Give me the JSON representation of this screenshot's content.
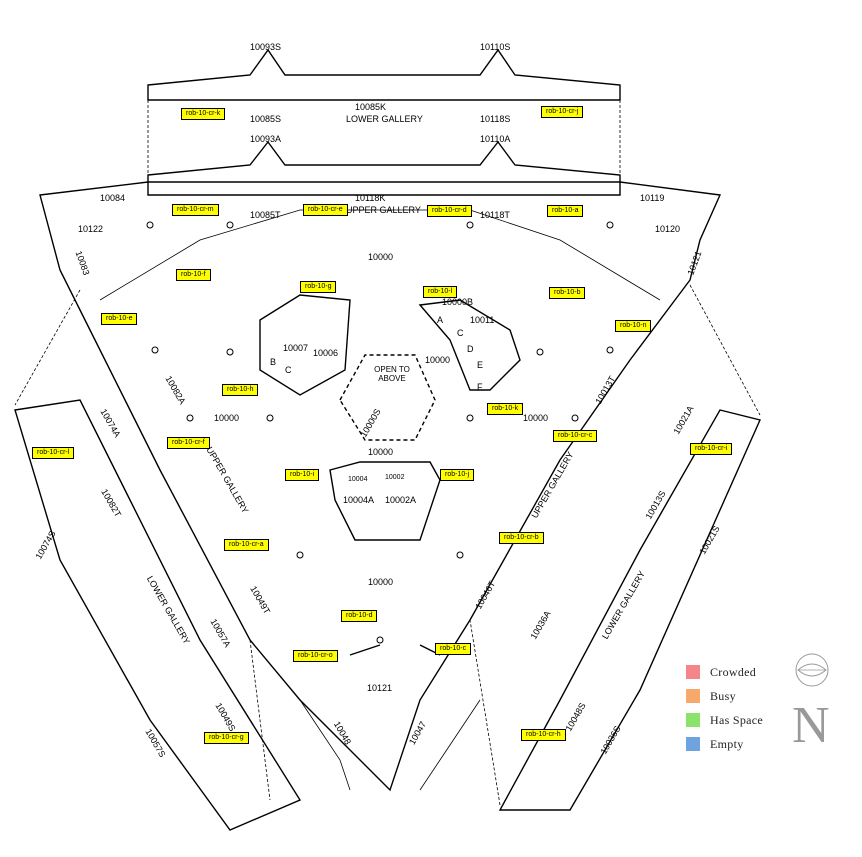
{
  "room_labels": {
    "cr_k": "rob-10-cr-k",
    "cr_j": "rob-10-cr-j",
    "cr_m": "rob-10-cr-m",
    "cr_e": "rob-10-cr-e",
    "cr_d": "rob-10-cr-d",
    "a": "rob-10-a",
    "f": "rob-10-f",
    "g": "rob-10-g",
    "l": "rob-10-l",
    "b": "rob-10-b",
    "e": "rob-10-e",
    "n": "rob-10-n",
    "h": "rob-10-h",
    "k": "rob-10-k",
    "cr_c": "rob-10-cr-c",
    "cr_l": "rob-10-cr-l",
    "cr_f": "rob-10-cr-f",
    "cr_i": "rob-10-cr-i",
    "i": "rob-10-i",
    "j": "rob-10-j",
    "cr_b": "rob-10-cr-b",
    "cr_a": "rob-10-cr-a",
    "d": "rob-10-d",
    "c": "rob-10-c",
    "cr_o": "rob-10-cr-o",
    "cr_g": "rob-10-cr-g",
    "cr_h": "rob-10-cr-h"
  },
  "plan_text": {
    "r10093S": "10093S",
    "r10110S": "10110S",
    "r10085K": "10085K",
    "lower_gallery_top": "LOWER GALLERY",
    "r10085S": "10085S",
    "r10118S": "10118S",
    "r10093A": "10093A",
    "r10110A": "10110A",
    "r10084": "10084",
    "r10118K": "10118K",
    "upper_gallery_top": "UPPER GALLERY",
    "r10119": "10119",
    "r10085T": "10085T",
    "r10118T": "10118T",
    "r10122": "10122",
    "r10120": "10120",
    "r10083": "10083",
    "r10121_right": "10121",
    "r10000_top": "10000",
    "r10000B": "10000B",
    "r10007": "10007",
    "r10006": "10006",
    "r10011": "10011",
    "open_to_above": "OPEN TO ABOVE",
    "r10000_right_pod": "10000",
    "r10082A": "10082A",
    "r10013T": "10013T",
    "r10074A": "10074A",
    "r10021A": "10021A",
    "r10000_left": "10000",
    "r10000_right": "10000",
    "r10000S": "10000S",
    "r10000_mid": "10000",
    "r10082T": "10082T",
    "upper_gallery_left": "UPPER GALLERY",
    "upper_gallery_right": "UPPER GALLERY",
    "r10013S": "10013S",
    "r10074S": "10074S",
    "r10004A": "10004A",
    "r10002A": "10002A",
    "r10004": "10004",
    "r10002": "10002",
    "r10021S": "10021S",
    "r10046T": "10046T",
    "lower_gallery_left": "LOWER GALLERY",
    "lower_gallery_right": "LOWER GALLERY",
    "r10000_low": "10000",
    "r10049T": "10049T",
    "r10057A": "10057A",
    "r10036A": "10036A",
    "r10121_bottom": "10121",
    "r10049S": "10049S",
    "r10048S": "10048S",
    "r10057S": "10057S",
    "r10048": "10048",
    "r10047": "10047",
    "r10036S": "10036S",
    "room_a": "A",
    "room_b": "B",
    "room_c": "C",
    "room_c2": "C",
    "room_d": "D",
    "room_e": "E",
    "room_f": "F"
  },
  "legend": [
    {
      "label": "Crowded",
      "color": "#f4868a"
    },
    {
      "label": "Busy",
      "color": "#f7a86b"
    },
    {
      "label": "Has Space",
      "color": "#8ae36a"
    },
    {
      "label": "Empty",
      "color": "#6fa3e0"
    }
  ],
  "compass": {
    "north_letter": "N",
    "icon": "compass-rose-icon"
  },
  "colors": {
    "label_fill": "#ffff00",
    "line": "#000000"
  }
}
